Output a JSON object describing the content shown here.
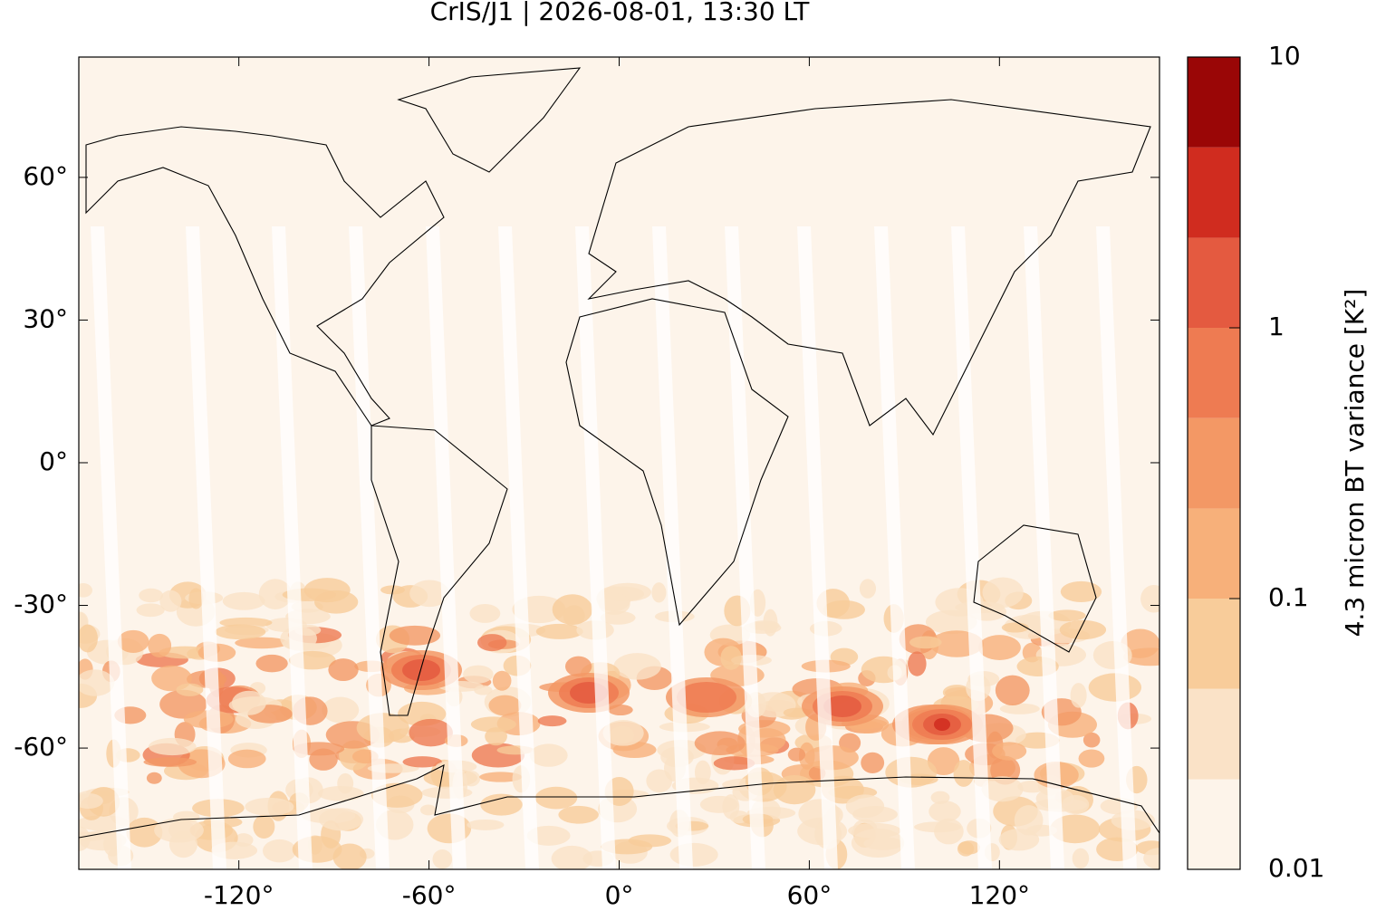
{
  "chart_data": {
    "type": "map",
    "title": "CrIS/J1 | 2026-08-01, 13:30 LT",
    "xlim": [
      -170.5,
      170.5
    ],
    "ylim": [
      -85.5,
      85.3
    ],
    "xticks": [
      {
        "value": -120,
        "label": "-120°"
      },
      {
        "value": -60,
        "label": "-60°"
      },
      {
        "value": 0,
        "label": "0°"
      },
      {
        "value": 60,
        "label": "60°"
      },
      {
        "value": 120,
        "label": "120°"
      }
    ],
    "yticks": [
      {
        "value": -60,
        "label": "-60°"
      },
      {
        "value": -30,
        "label": "-30°"
      },
      {
        "value": 0,
        "label": "0°"
      },
      {
        "value": 30,
        "label": "30°"
      },
      {
        "value": 60,
        "label": "60°"
      }
    ],
    "colorbar": {
      "label": "4.3 micron BT variance [K²]",
      "scale": "log",
      "lim": [
        0.01,
        10
      ],
      "ticks": [
        0.01,
        0.1,
        1,
        10
      ],
      "levels": [
        0.01,
        0.0215,
        0.0464,
        0.1,
        0.215,
        0.464,
        1,
        2.15,
        4.64,
        10
      ],
      "colors": [
        "#fdf4ea",
        "#fae2c7",
        "#f8cc9a",
        "#f7b07a",
        "#f39865",
        "#ee7b52",
        "#e45a40",
        "#d02c1f",
        "#9a0606"
      ]
    }
  }
}
